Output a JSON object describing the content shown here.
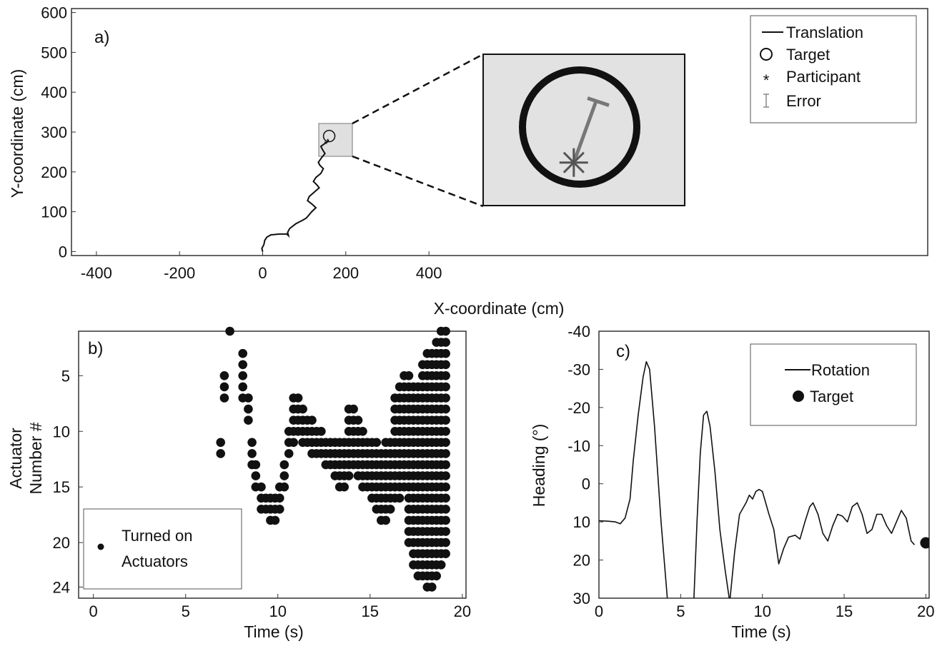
{
  "figure": {
    "panel_a": "a)",
    "panel_b": "b)",
    "panel_c": "c)"
  },
  "chart_data": [
    {
      "id": "a",
      "type": "line",
      "xlabel": "X-coordinate (cm)",
      "ylabel": "Y-coordinate (cm)",
      "xlim": [
        -460,
        1600
      ],
      "ylim": [
        -10,
        610
      ],
      "xticks": [
        -400,
        -200,
        0,
        200,
        400
      ],
      "yticks": [
        0,
        100,
        200,
        300,
        400,
        500,
        600
      ],
      "series": [
        {
          "name": "Translation",
          "x": [
            0,
            -2,
            3,
            5,
            10,
            20,
            40,
            58,
            62,
            60,
            65,
            80,
            95,
            105,
            118,
            128,
            120,
            108,
            112,
            125,
            136,
            130,
            122,
            128,
            140,
            146,
            138,
            134,
            142,
            150,
            144,
            140,
            148,
            155,
            158,
            156
          ],
          "y": [
            0,
            8,
            18,
            28,
            36,
            42,
            44,
            44,
            40,
            48,
            58,
            70,
            78,
            84,
            100,
            110,
            118,
            128,
            138,
            150,
            160,
            168,
            176,
            186,
            196,
            208,
            216,
            224,
            236,
            246,
            256,
            264,
            270,
            275,
            278,
            282
          ]
        }
      ],
      "target": {
        "x": 160,
        "y": 290
      },
      "participant": {
        "x": 152,
        "y": 272
      },
      "error_bar": {
        "from": [
          152,
          272
        ],
        "to": [
          162,
          303
        ]
      },
      "inset": {
        "xlim": [
          120,
          200
        ],
        "ylim": [
          250,
          330
        ]
      },
      "legend": {
        "position": "top-right",
        "items": [
          "Translation",
          "Target",
          "Participant",
          "Error"
        ]
      }
    },
    {
      "id": "b",
      "type": "scatter",
      "xlabel": "Time (s)",
      "ylabel_line1": "Actuator",
      "ylabel_line2": "Number #",
      "xlim": [
        -0.8,
        20.2
      ],
      "ylim": [
        25,
        1
      ],
      "xticks": [
        0,
        5,
        10,
        15,
        20
      ],
      "yticks": [
        5,
        10,
        15,
        20,
        24
      ],
      "dt": 0.25,
      "series": [
        {
          "name": "Turned on Actuators",
          "spans": [
            [
              6.9,
              11,
              12
            ],
            [
              7.1,
              5,
              7
            ],
            [
              7.4,
              1,
              1
            ],
            [
              8.1,
              3,
              7
            ],
            [
              8.4,
              7,
              9
            ],
            [
              8.6,
              11,
              13
            ],
            [
              8.8,
              13,
              15
            ],
            [
              9.1,
              15,
              17
            ],
            [
              9.35,
              16,
              17
            ],
            [
              9.6,
              16,
              18
            ],
            [
              9.85,
              16,
              18
            ],
            [
              10.1,
              15,
              17
            ],
            [
              10.35,
              13,
              15
            ],
            [
              10.6,
              10,
              12
            ],
            [
              10.85,
              7,
              11
            ],
            [
              11.1,
              7,
              10
            ],
            [
              11.35,
              8,
              11
            ],
            [
              11.6,
              9,
              11
            ],
            [
              11.85,
              9,
              12
            ],
            [
              12.1,
              10,
              12
            ],
            [
              12.35,
              10,
              12
            ],
            [
              12.6,
              11,
              13
            ],
            [
              12.85,
              11,
              13
            ],
            [
              13.1,
              11,
              14
            ],
            [
              13.35,
              11,
              15
            ],
            [
              13.6,
              11,
              15
            ],
            [
              13.85,
              8,
              14
            ],
            [
              14.1,
              8,
              13
            ],
            [
              14.35,
              9,
              14
            ],
            [
              14.6,
              10,
              15
            ],
            [
              14.85,
              11,
              15
            ],
            [
              15.1,
              11,
              16
            ],
            [
              15.35,
              11,
              17
            ],
            [
              15.6,
              12,
              18
            ],
            [
              15.85,
              11,
              18
            ],
            [
              16.1,
              11,
              17
            ],
            [
              16.35,
              7,
              16
            ],
            [
              16.6,
              6,
              16
            ],
            [
              16.85,
              5,
              15
            ],
            [
              17.1,
              5,
              20
            ],
            [
              17.35,
              6,
              22
            ],
            [
              17.6,
              6,
              23
            ],
            [
              17.85,
              4,
              23
            ],
            [
              18.1,
              3,
              24
            ],
            [
              18.35,
              3,
              24
            ],
            [
              18.6,
              2,
              23
            ],
            [
              18.85,
              1,
              22
            ],
            [
              19.1,
              1,
              21
            ]
          ]
        }
      ],
      "legend": {
        "position": "bottom-left",
        "line1": "Turned on",
        "line2": "Actuators"
      }
    },
    {
      "id": "c",
      "type": "line",
      "xlabel": "Time (s)",
      "ylabel": "Heading (°)",
      "xlim": [
        0,
        20.2
      ],
      "ylim": [
        30,
        -40
      ],
      "xticks": [
        0,
        5,
        10,
        15,
        20
      ],
      "yticks": [
        -40,
        -30,
        -20,
        -10,
        0,
        10,
        20,
        30
      ],
      "series": [
        {
          "name": "Rotation",
          "x": [
            0,
            0.5,
            1.0,
            1.3,
            1.6,
            1.9,
            2.1,
            2.4,
            2.7,
            2.9,
            3.1,
            3.4,
            3.8,
            4.2,
            5.8,
            6.0,
            6.2,
            6.4,
            6.6,
            6.8,
            7.1,
            7.4,
            7.7,
            8.0,
            8.3,
            8.6,
            9.0,
            9.2,
            9.4,
            9.6,
            9.8,
            10.0,
            10.2,
            10.4,
            10.7,
            11.0,
            11.3,
            11.6,
            12.0,
            12.3,
            12.6,
            12.9,
            13.1,
            13.4,
            13.7,
            14.0,
            14.3,
            14.6,
            14.9,
            15.2,
            15.5,
            15.8,
            16.1,
            16.4,
            16.7,
            17.0,
            17.3,
            17.6,
            17.9,
            18.2,
            18.5,
            18.8,
            19.1,
            19.3
          ],
          "y": [
            9.7,
            9.8,
            10.0,
            10.5,
            9.0,
            4.0,
            -6.0,
            -18.0,
            -28.0,
            -32.0,
            -30.0,
            -15.0,
            10.0,
            31.0,
            31.0,
            10.0,
            -8.0,
            -18.0,
            -19.0,
            -15.0,
            -3.0,
            12.0,
            22.0,
            31.0,
            18.0,
            8.0,
            5.0,
            3.0,
            4.0,
            2.0,
            1.5,
            2.0,
            5.0,
            8.0,
            12.0,
            21.0,
            17.0,
            14.0,
            13.5,
            14.5,
            10.0,
            6.0,
            5.0,
            8.0,
            13.0,
            15.0,
            11.0,
            8.0,
            8.5,
            10.0,
            6.0,
            5.0,
            8.0,
            13.0,
            12.0,
            8.0,
            8.0,
            11.0,
            13.0,
            10.0,
            7.0,
            9.0,
            15.0,
            16.0
          ]
        }
      ],
      "target": {
        "x": 20.0,
        "y": 15.5
      },
      "legend": {
        "position": "top-right",
        "items": [
          "Rotation",
          "Target"
        ]
      }
    }
  ]
}
